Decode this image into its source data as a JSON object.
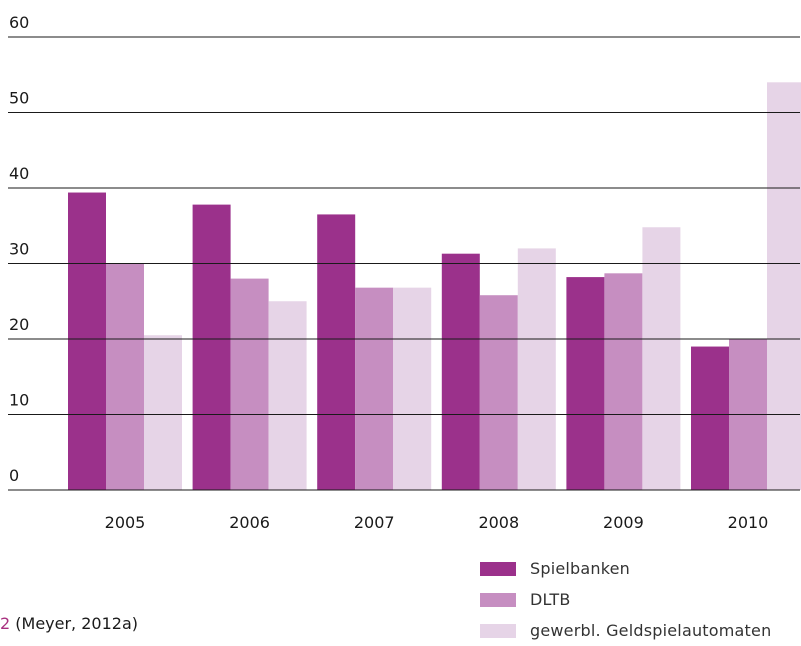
{
  "chart_data": {
    "type": "bar",
    "categories": [
      "2005",
      "2006",
      "2007",
      "2008",
      "2009",
      "2010"
    ],
    "series": [
      {
        "name": "Spielbanken",
        "color": "#9b318b",
        "values": [
          39.4,
          37.8,
          36.5,
          31.3,
          28.2,
          19.0
        ]
      },
      {
        "name": "DLTB",
        "color": "#c68ec1",
        "values": [
          30.0,
          28.0,
          26.8,
          25.8,
          28.7,
          20.0
        ]
      },
      {
        "name": "gewerbl. Geldspielautomaten",
        "color": "#e6d4e7",
        "values": [
          20.5,
          25.0,
          26.8,
          32.0,
          34.8,
          54.0
        ]
      }
    ],
    "yticks": [
      "0",
      "10",
      "20",
      "30",
      "40",
      "50",
      "60"
    ],
    "ylim": [
      0,
      60
    ],
    "grid": true,
    "legend_position": "bottom-right"
  },
  "source": {
    "number": "2",
    "text": " (Meyer, 2012a)"
  }
}
